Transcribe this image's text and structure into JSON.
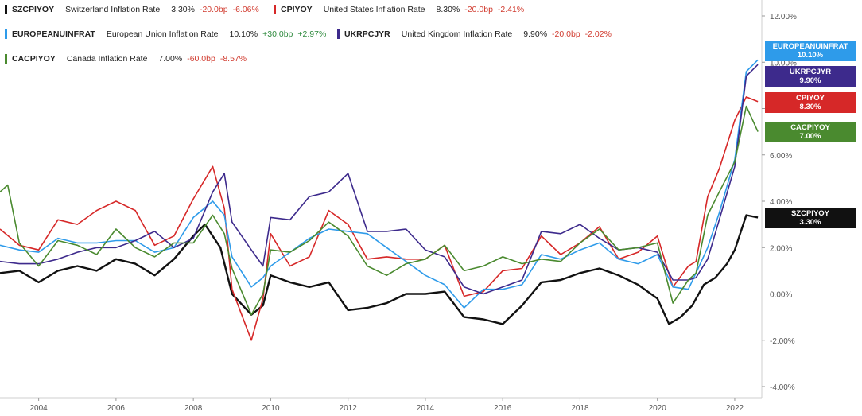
{
  "legend": [
    {
      "ticker": "SZCPIYOY",
      "name": "Switzerland Inflation Rate",
      "value": "3.30%",
      "bp": "-20.0bp",
      "pct": "-6.06%",
      "color": "#111111",
      "bp_sign": "neg",
      "pct_sign": "neg"
    },
    {
      "ticker": "CPIYOY",
      "name": "United States Inflation Rate",
      "value": "8.30%",
      "bp": "-20.0bp",
      "pct": "-2.41%",
      "color": "#d62828",
      "bp_sign": "neg",
      "pct_sign": "neg"
    },
    {
      "ticker": "EUROPEANUINFRAT",
      "name": "European Union Inflation Rate",
      "value": "10.10%",
      "bp": "+30.0bp",
      "pct": "+2.97%",
      "color": "#2e9bea",
      "bp_sign": "pos",
      "pct_sign": "pos"
    },
    {
      "ticker": "UKRPCJYR",
      "name": "United Kingdom Inflation Rate",
      "value": "9.90%",
      "bp": "-20.0bp",
      "pct": "-2.02%",
      "color": "#3d2a8c",
      "bp_sign": "neg",
      "pct_sign": "neg"
    },
    {
      "ticker": "CACPIYOY",
      "name": "Canada Inflation Rate",
      "value": "7.00%",
      "bp": "-60.0bp",
      "pct": "-8.57%",
      "color": "#4a8a2f",
      "bp_sign": "neg",
      "pct_sign": "neg"
    }
  ],
  "end_labels": [
    {
      "ticker": "EUROPEANUINFRAT",
      "value": "10.10%",
      "color": "#2e9bea"
    },
    {
      "ticker": "UKRPCJYR",
      "value": "9.90%",
      "color": "#3d2a8c"
    },
    {
      "ticker": "CPIYOY",
      "value": "8.30%",
      "color": "#d62828"
    },
    {
      "ticker": "CACPIYOY",
      "value": "7.00%",
      "color": "#4a8a2f"
    },
    {
      "ticker": "SZCPIYOY",
      "value": "3.30%",
      "color": "#111111"
    }
  ],
  "chart_data": {
    "type": "line",
    "title": "",
    "xlabel": "",
    "ylabel": "",
    "xlim": [
      2003.0,
      2022.7
    ],
    "ylim": [
      -4.0,
      12.0
    ],
    "x_ticks": [
      2004,
      2006,
      2008,
      2010,
      2012,
      2014,
      2016,
      2018,
      2020,
      2022
    ],
    "x_tick_labels": [
      "2004",
      "2006",
      "2008",
      "2010",
      "2012",
      "2014",
      "2016",
      "2018",
      "2020",
      "2022"
    ],
    "y_ticks": [
      -4,
      -2,
      0,
      2,
      4,
      6,
      8,
      10,
      12
    ],
    "y_tick_labels": [
      "-4.00%",
      "-2.00%",
      "0.00%",
      "2.00%",
      "4.00%",
      "6.00%",
      "8.00%",
      "10.00%",
      "12.00%"
    ],
    "zero_line": true,
    "series": [
      {
        "name": "SZCPIYOY",
        "color": "#111111",
        "x": [
          2003.0,
          2003.5,
          2004.0,
          2004.5,
          2005.0,
          2005.5,
          2006.0,
          2006.5,
          2007.0,
          2007.5,
          2008.0,
          2008.3,
          2008.7,
          2009.0,
          2009.5,
          2009.8,
          2010.0,
          2010.5,
          2011.0,
          2011.5,
          2012.0,
          2012.5,
          2013.0,
          2013.5,
          2014.0,
          2014.5,
          2015.0,
          2015.5,
          2016.0,
          2016.5,
          2017.0,
          2017.5,
          2018.0,
          2018.5,
          2019.0,
          2019.5,
          2020.0,
          2020.3,
          2020.6,
          2020.9,
          2021.2,
          2021.5,
          2021.8,
          2022.0,
          2022.3,
          2022.6
        ],
        "y": [
          0.9,
          1.0,
          0.5,
          1.0,
          1.2,
          1.0,
          1.5,
          1.3,
          0.8,
          1.5,
          2.5,
          3.0,
          2.0,
          0.0,
          -0.9,
          -0.5,
          0.8,
          0.5,
          0.3,
          0.5,
          -0.7,
          -0.6,
          -0.4,
          0.0,
          0.0,
          0.1,
          -1.0,
          -1.1,
          -1.3,
          -0.5,
          0.5,
          0.6,
          0.9,
          1.1,
          0.8,
          0.4,
          -0.2,
          -1.3,
          -1.0,
          -0.5,
          0.4,
          0.7,
          1.3,
          1.9,
          3.4,
          3.3
        ]
      },
      {
        "name": "CPIYOY",
        "color": "#d62828",
        "x": [
          2003.0,
          2003.5,
          2004.0,
          2004.5,
          2005.0,
          2005.5,
          2006.0,
          2006.5,
          2007.0,
          2007.5,
          2008.0,
          2008.5,
          2008.8,
          2009.0,
          2009.5,
          2009.8,
          2010.0,
          2010.5,
          2011.0,
          2011.5,
          2012.0,
          2012.5,
          2013.0,
          2013.5,
          2014.0,
          2014.5,
          2015.0,
          2015.5,
          2016.0,
          2016.5,
          2017.0,
          2017.5,
          2018.0,
          2018.5,
          2019.0,
          2019.5,
          2020.0,
          2020.4,
          2020.8,
          2021.0,
          2021.3,
          2021.6,
          2022.0,
          2022.3,
          2022.6
        ],
        "y": [
          2.8,
          2.1,
          1.9,
          3.2,
          3.0,
          3.6,
          4.0,
          3.6,
          2.1,
          2.5,
          4.1,
          5.5,
          3.7,
          0.2,
          -2.0,
          -0.2,
          2.6,
          1.2,
          1.6,
          3.6,
          3.0,
          1.5,
          1.6,
          1.5,
          1.5,
          2.1,
          -0.1,
          0.1,
          1.0,
          1.1,
          2.5,
          1.7,
          2.2,
          2.9,
          1.5,
          1.8,
          2.5,
          0.3,
          1.2,
          1.4,
          4.2,
          5.4,
          7.5,
          8.5,
          8.3
        ]
      },
      {
        "name": "EUROPEANUINFRAT",
        "color": "#2e9bea",
        "x": [
          2003.0,
          2003.5,
          2004.0,
          2004.5,
          2005.0,
          2005.5,
          2006.0,
          2006.5,
          2007.0,
          2007.5,
          2008.0,
          2008.5,
          2008.8,
          2009.0,
          2009.5,
          2009.8,
          2010.0,
          2010.5,
          2011.0,
          2011.5,
          2012.0,
          2012.5,
          2013.0,
          2013.5,
          2014.0,
          2014.5,
          2015.0,
          2015.5,
          2016.0,
          2016.5,
          2017.0,
          2017.5,
          2018.0,
          2018.5,
          2019.0,
          2019.5,
          2020.0,
          2020.4,
          2020.8,
          2021.0,
          2021.3,
          2021.6,
          2022.0,
          2022.3,
          2022.6
        ],
        "y": [
          2.1,
          1.9,
          1.8,
          2.4,
          2.2,
          2.2,
          2.3,
          2.3,
          1.8,
          2.0,
          3.3,
          4.0,
          3.4,
          1.6,
          0.3,
          0.7,
          1.2,
          1.8,
          2.4,
          2.8,
          2.7,
          2.6,
          2.0,
          1.4,
          0.8,
          0.4,
          -0.6,
          0.2,
          0.2,
          0.4,
          1.7,
          1.5,
          1.9,
          2.2,
          1.5,
          1.3,
          1.7,
          0.3,
          0.2,
          0.9,
          2.0,
          3.5,
          5.8,
          9.6,
          10.1
        ]
      },
      {
        "name": "UKRPCJYR",
        "color": "#3d2a8c",
        "x": [
          2003.0,
          2003.5,
          2004.0,
          2004.5,
          2005.0,
          2005.5,
          2006.0,
          2006.5,
          2007.0,
          2007.5,
          2008.0,
          2008.5,
          2008.8,
          2009.0,
          2009.5,
          2009.8,
          2010.0,
          2010.5,
          2011.0,
          2011.5,
          2012.0,
          2012.5,
          2013.0,
          2013.5,
          2014.0,
          2014.5,
          2015.0,
          2015.5,
          2016.0,
          2016.5,
          2017.0,
          2017.5,
          2018.0,
          2018.5,
          2019.0,
          2019.5,
          2020.0,
          2020.4,
          2020.8,
          2021.0,
          2021.3,
          2021.6,
          2022.0,
          2022.3,
          2022.6
        ],
        "y": [
          1.4,
          1.3,
          1.3,
          1.5,
          1.8,
          2.0,
          2.0,
          2.3,
          2.7,
          2.0,
          2.4,
          4.4,
          5.2,
          3.1,
          1.9,
          1.2,
          3.3,
          3.2,
          4.2,
          4.4,
          5.2,
          2.7,
          2.7,
          2.8,
          1.9,
          1.6,
          0.3,
          0.0,
          0.3,
          0.6,
          2.7,
          2.6,
          3.0,
          2.4,
          1.9,
          2.0,
          1.8,
          0.6,
          0.6,
          0.7,
          1.5,
          3.2,
          5.5,
          9.4,
          9.9
        ]
      },
      {
        "name": "CACPIYOY",
        "color": "#4a8a2f",
        "x": [
          2003.0,
          2003.2,
          2003.5,
          2004.0,
          2004.5,
          2005.0,
          2005.5,
          2006.0,
          2006.5,
          2007.0,
          2007.5,
          2008.0,
          2008.5,
          2008.8,
          2009.0,
          2009.5,
          2009.8,
          2010.0,
          2010.5,
          2011.0,
          2011.5,
          2012.0,
          2012.5,
          2013.0,
          2013.5,
          2014.0,
          2014.5,
          2015.0,
          2015.5,
          2016.0,
          2016.5,
          2017.0,
          2017.5,
          2018.0,
          2018.5,
          2019.0,
          2019.5,
          2020.0,
          2020.4,
          2020.8,
          2021.0,
          2021.3,
          2021.6,
          2022.0,
          2022.3,
          2022.6
        ],
        "y": [
          4.4,
          4.7,
          2.2,
          1.2,
          2.3,
          2.1,
          1.7,
          2.8,
          2.0,
          1.6,
          2.2,
          2.2,
          3.4,
          2.6,
          1.1,
          -0.9,
          0.0,
          1.9,
          1.8,
          2.3,
          3.1,
          2.5,
          1.2,
          0.8,
          1.3,
          1.5,
          2.1,
          1.0,
          1.2,
          1.6,
          1.3,
          1.5,
          1.4,
          2.2,
          2.8,
          1.9,
          2.0,
          2.2,
          -0.4,
          0.6,
          0.9,
          3.4,
          4.4,
          5.7,
          8.1,
          7.0
        ]
      }
    ]
  }
}
